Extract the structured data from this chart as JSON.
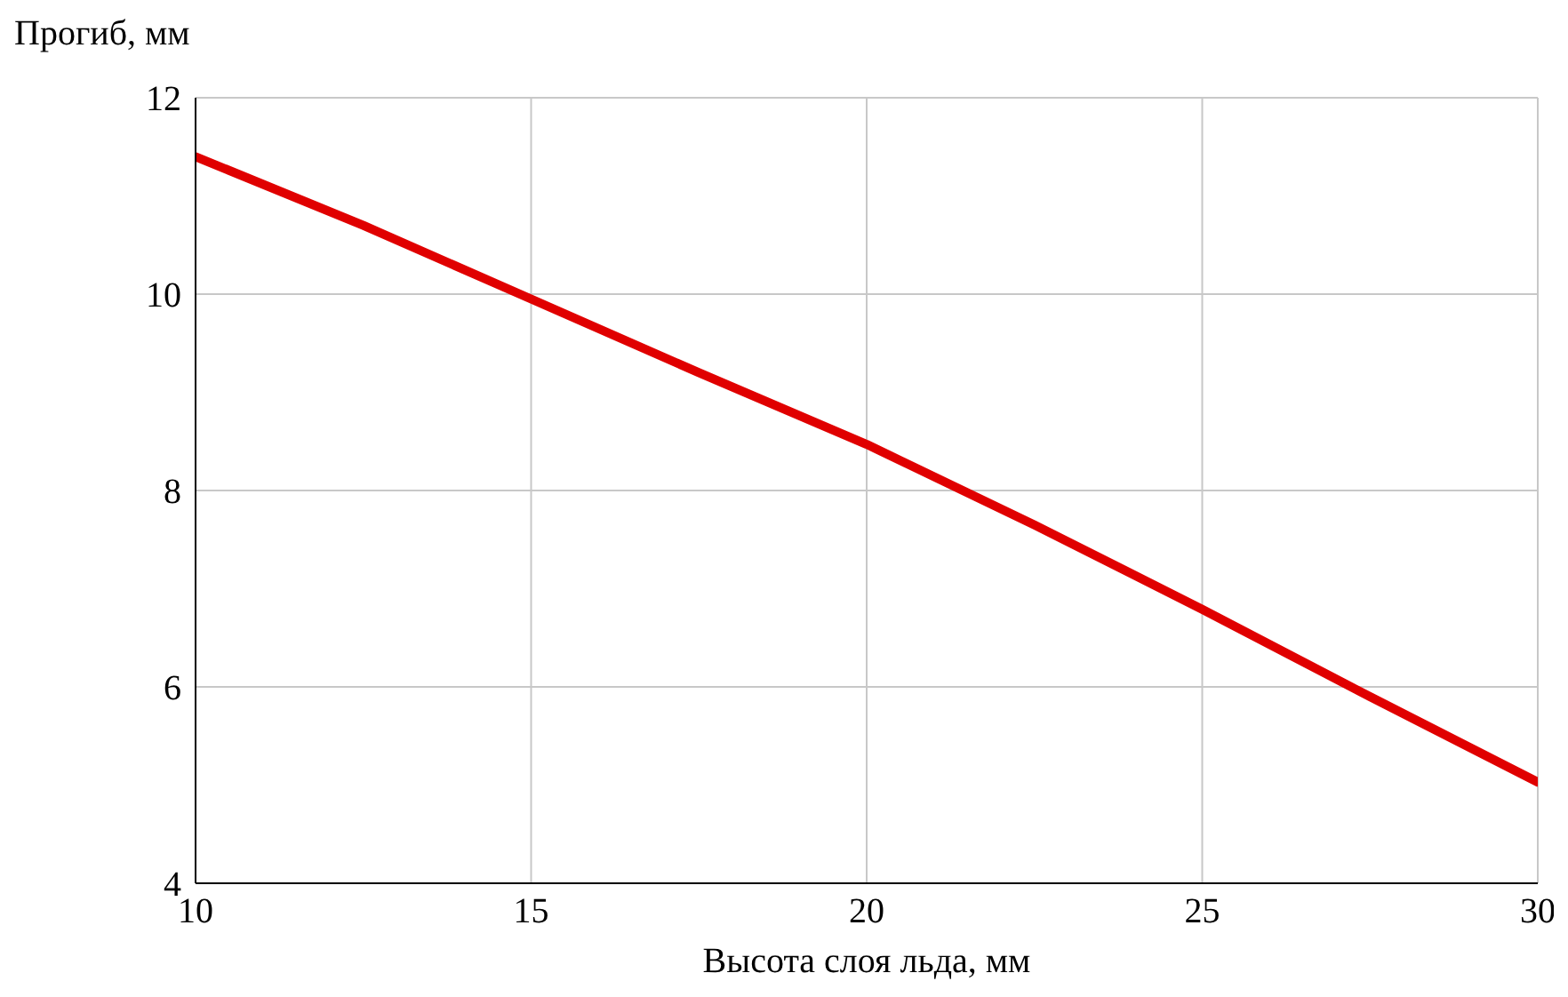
{
  "chart_data": {
    "type": "line",
    "xlabel": "Высота слоя льда, мм",
    "ylabel": "Прогиб, мм",
    "x": [
      10,
      12.5,
      15,
      17.5,
      20,
      22.5,
      25,
      27.5,
      30
    ],
    "series": [
      {
        "color": "#e00000",
        "values": [
          11.4,
          10.7,
          9.95,
          9.2,
          8.47,
          7.65,
          6.79,
          5.9,
          5.03
        ]
      }
    ],
    "xlim": [
      10,
      30
    ],
    "xticks": [
      10,
      15,
      20,
      25,
      30
    ],
    "ylim": [
      4,
      12
    ],
    "yticks": [
      4,
      6,
      8,
      10,
      12
    ],
    "grid": true,
    "marker": "none",
    "line_style": "solid"
  }
}
